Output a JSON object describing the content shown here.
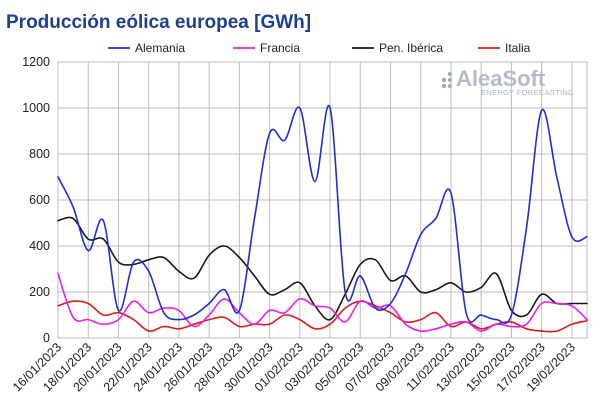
{
  "chart_data": {
    "type": "line",
    "title": "Producción eólica europea [GWh]",
    "xlabel": "",
    "ylabel": "",
    "ylim": [
      0,
      1200
    ],
    "yticks": [
      0,
      200,
      400,
      600,
      800,
      1000,
      1200
    ],
    "x_tick_labels": [
      "16/01/2023",
      "18/01/2023",
      "20/01/2023",
      "22/01/2023",
      "24/01/2023",
      "26/01/2023",
      "28/01/2023",
      "30/01/2023",
      "01/02/2023",
      "03/02/2023",
      "05/02/2023",
      "07/02/2023",
      "09/02/2023",
      "11/02/2023",
      "13/02/2023",
      "15/02/2023",
      "17/02/2023",
      "19/02/2023"
    ],
    "grid": true,
    "legend_position": "top",
    "watermark": {
      "main": "AleaSoft",
      "sub": "ENERGY FORECASTING"
    },
    "x": [
      "16/01/2023",
      "17/01/2023",
      "18/01/2023",
      "19/01/2023",
      "20/01/2023",
      "21/01/2023",
      "22/01/2023",
      "23/01/2023",
      "24/01/2023",
      "25/01/2023",
      "26/01/2023",
      "27/01/2023",
      "28/01/2023",
      "29/01/2023",
      "30/01/2023",
      "31/01/2023",
      "01/02/2023",
      "02/02/2023",
      "03/02/2023",
      "04/02/2023",
      "05/02/2023",
      "06/02/2023",
      "07/02/2023",
      "08/02/2023",
      "09/02/2023",
      "10/02/2023",
      "11/02/2023",
      "12/02/2023",
      "13/02/2023",
      "14/02/2023",
      "15/02/2023",
      "16/02/2023",
      "17/02/2023",
      "18/02/2023",
      "19/02/2023",
      "20/02/2023"
    ],
    "series": [
      {
        "name": "Alemania",
        "color": "#1f2fd0",
        "values": [
          700,
          570,
          380,
          510,
          120,
          330,
          290,
          110,
          80,
          100,
          150,
          210,
          120,
          520,
          890,
          860,
          1000,
          680,
          1000,
          200,
          270,
          130,
          150,
          280,
          450,
          520,
          630,
          110,
          100,
          80,
          100,
          480,
          990,
          700,
          440,
          440
        ]
      },
      {
        "name": "Francia",
        "color": "#e620e6",
        "values": [
          280,
          90,
          80,
          60,
          80,
          160,
          110,
          130,
          120,
          50,
          100,
          170,
          110,
          60,
          120,
          110,
          170,
          140,
          130,
          70,
          160,
          130,
          140,
          60,
          30,
          40,
          60,
          70,
          30,
          60,
          50,
          60,
          150,
          150,
          140,
          80
        ]
      },
      {
        "name": "Pen. Ibérica",
        "color": "#1a1a1a",
        "values": [
          510,
          520,
          430,
          430,
          330,
          320,
          340,
          350,
          290,
          260,
          360,
          400,
          350,
          270,
          190,
          210,
          240,
          140,
          80,
          190,
          320,
          340,
          250,
          270,
          200,
          210,
          240,
          200,
          220,
          280,
          120,
          100,
          190,
          150,
          150,
          150
        ]
      },
      {
        "name": "Italia",
        "color": "#e01a1a",
        "values": [
          140,
          160,
          150,
          100,
          110,
          80,
          30,
          50,
          40,
          60,
          80,
          90,
          50,
          60,
          60,
          100,
          80,
          40,
          60,
          130,
          160,
          140,
          110,
          70,
          80,
          110,
          50,
          70,
          40,
          60,
          70,
          40,
          30,
          30,
          60,
          75
        ]
      }
    ]
  }
}
